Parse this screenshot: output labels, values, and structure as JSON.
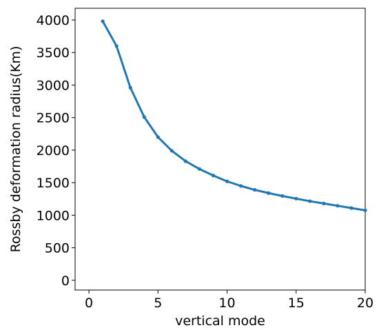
{
  "chart_data": {
    "type": "line",
    "title": "",
    "xlabel": "vertical mode",
    "ylabel": "Rossby deformation radius(Km)",
    "xlim": [
      -1,
      20
    ],
    "ylim": [
      -150,
      4180
    ],
    "grid": false,
    "legend": "none",
    "x_ticks": [
      "0",
      "5",
      "10",
      "15",
      "20"
    ],
    "y_ticks": [
      "0",
      "500",
      "1000",
      "1500",
      "2000",
      "2500",
      "3000",
      "3500",
      "4000"
    ],
    "series": [
      {
        "color": "#1f77b4",
        "marker": "circle",
        "x": [
          1,
          2,
          3,
          4,
          5,
          6,
          7,
          8,
          9,
          10,
          11,
          12,
          13,
          14,
          15,
          16,
          17,
          18,
          19,
          20
        ],
        "y": [
          3980,
          3600,
          2960,
          2510,
          2200,
          1990,
          1830,
          1710,
          1610,
          1520,
          1450,
          1390,
          1340,
          1295,
          1255,
          1215,
          1180,
          1145,
          1110,
          1075
        ]
      }
    ]
  }
}
